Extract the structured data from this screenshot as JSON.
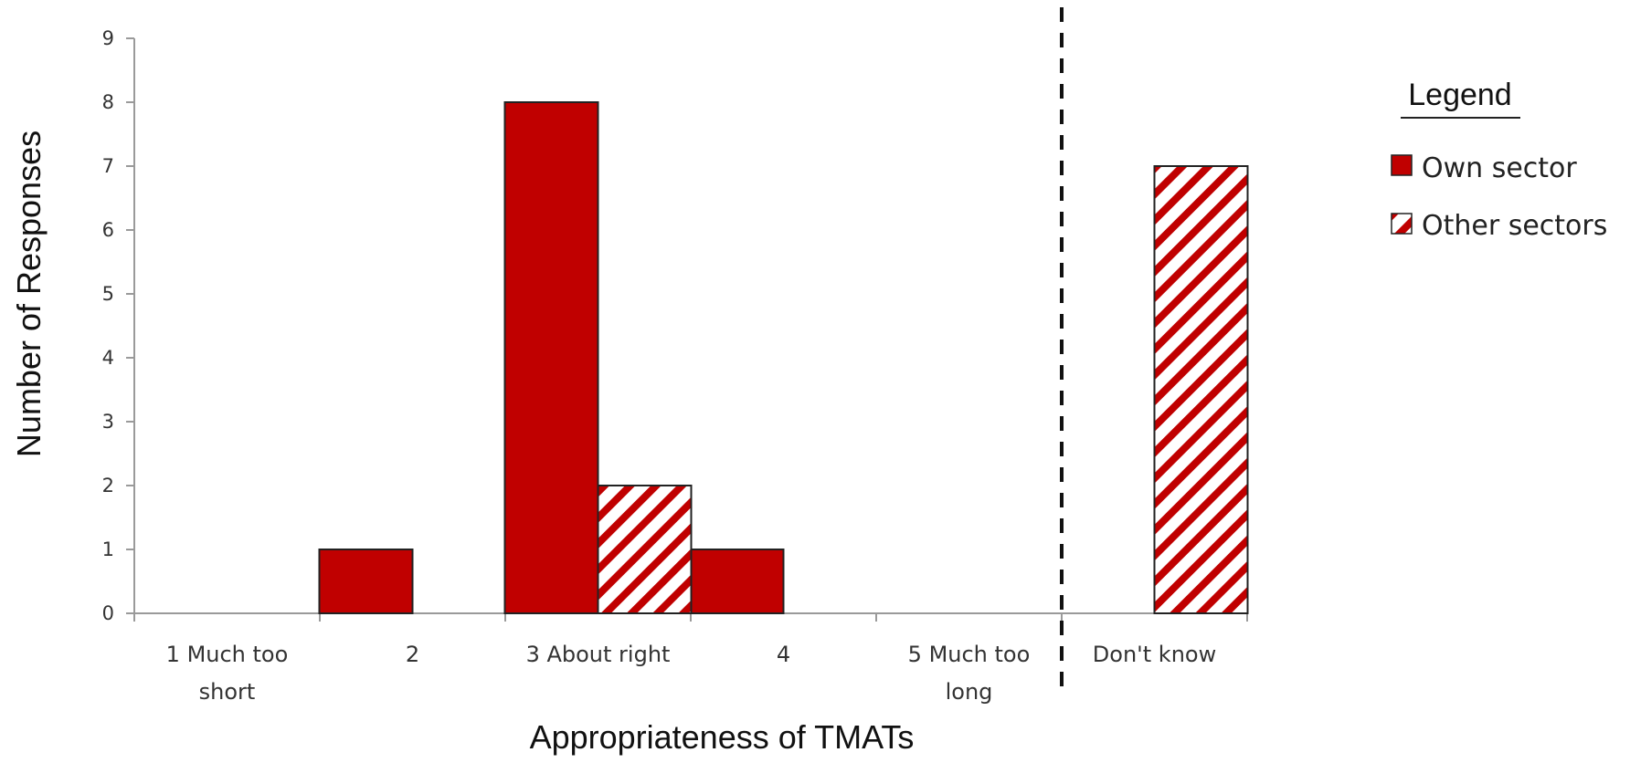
{
  "chart_data": {
    "type": "bar",
    "categories": [
      "1 Much too short",
      "2",
      "3 About right",
      "4",
      "5 Much too long",
      "Don't know"
    ],
    "category_lines": [
      [
        "1 Much too",
        "short"
      ],
      [
        "2"
      ],
      [
        "3 About right"
      ],
      [
        "4"
      ],
      [
        "5 Much too",
        "long"
      ],
      [
        "Don't know"
      ]
    ],
    "series": [
      {
        "name": "Own sector",
        "values": [
          0,
          1,
          8,
          1,
          0,
          0
        ],
        "color": "#c00000",
        "fill": "solid"
      },
      {
        "name": "Other sectors",
        "values": [
          0,
          0,
          2,
          0,
          0,
          7
        ],
        "color": "#c00000",
        "fill": "hatched"
      }
    ],
    "xlabel": "Appropriateness of TMATs",
    "ylabel": "Number of Responses",
    "ylim": [
      0,
      9
    ],
    "yticks": [
      0,
      1,
      2,
      3,
      4,
      5,
      6,
      7,
      8,
      9
    ],
    "grid": false,
    "legend": {
      "title": "Legend",
      "position": "right"
    },
    "separator": {
      "style": "dashed",
      "between": [
        "5 Much too long",
        "Don't know"
      ]
    }
  }
}
